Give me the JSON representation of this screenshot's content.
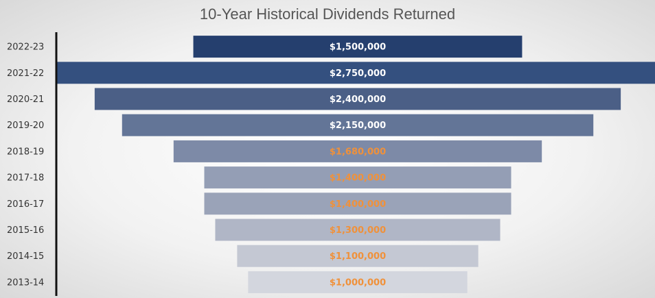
{
  "chart_data": {
    "type": "funnel",
    "title": "10-Year Historical Dividends Returned",
    "categories": [
      "2022-23",
      "2021-22",
      "2020-21",
      "2019-20",
      "2018-19",
      "2017-18",
      "2016-17",
      "2015-16",
      "2014-15",
      "2013-14"
    ],
    "values": [
      1500000,
      2750000,
      2400000,
      2150000,
      1680000,
      1400000,
      1400000,
      1300000,
      1100000,
      1000000
    ],
    "value_labels": [
      "$1,500,000",
      "$2,750,000",
      "$2,400,000",
      "$2,150,000",
      "$1,680,000",
      "$1,400,000",
      "$1,400,000",
      "$1,300,000",
      "$1,100,000",
      "$1,000,000"
    ],
    "colors": [
      "#253f6e",
      "#34507f",
      "#4b5f86",
      "#637597",
      "#7d8aa7",
      "#949eb5",
      "#9aa3b8",
      "#b0b6c6",
      "#c4c8d3",
      "#d3d6de"
    ],
    "label_colors": [
      "#ffffff",
      "#ffffff",
      "#ffffff",
      "#ffffff",
      "#f0913a",
      "#f0913a",
      "#f0913a",
      "#f0913a",
      "#f0913a",
      "#f0913a"
    ]
  }
}
